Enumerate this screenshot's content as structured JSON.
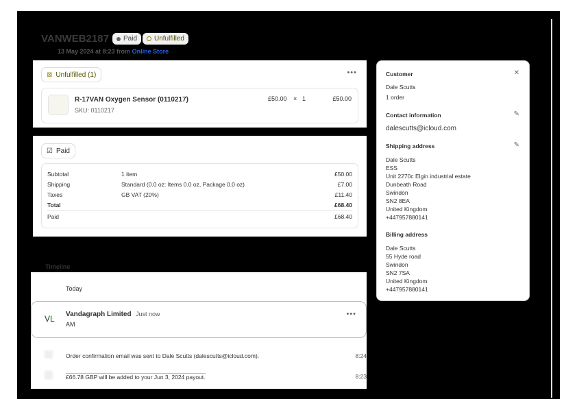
{
  "header": {
    "order_id": "VANWEB2187",
    "badge_paid": "Paid",
    "badge_unfulfilled": "Unfulfilled",
    "date": "13 May 2024 at 8:23 from",
    "channel": "Online Store"
  },
  "fulfillment": {
    "status": "Unfulfilled (1)",
    "item": {
      "name": "R-17VAN Oxygen Sensor (0110217)",
      "sku": "SKU: 0110217",
      "price": "£50.00",
      "times": "×",
      "qty": "1",
      "total": "£50.00"
    }
  },
  "payment": {
    "status": "Paid",
    "rows": [
      {
        "label": "Subtotal",
        "desc": "1 item",
        "amount": "£50.00"
      },
      {
        "label": "Shipping",
        "desc": "Standard (0.0 oz: Items 0.0 oz, Package 0.0 oz)",
        "amount": "£7.00"
      },
      {
        "label": "Taxes",
        "desc": "GB VAT (20%)",
        "amount": "£11.40"
      },
      {
        "label": "Total",
        "desc": "",
        "amount": "£68.40"
      },
      {
        "label": "Paid",
        "desc": "",
        "amount": "£68.40"
      }
    ]
  },
  "timeline": {
    "title": "Timeline",
    "today": "Today",
    "comment": {
      "initials": "VL",
      "author": "Vandagraph Limited",
      "time": "Just now",
      "text": "AM"
    },
    "events": [
      {
        "text": "Order confirmation email was sent to Dale Scutts (dalescutts@icloud.com).",
        "time": "8:24"
      },
      {
        "text": "£66.78 GBP will be added to your Jun 3, 2024 payout.",
        "time": "8:23"
      }
    ]
  },
  "customer": {
    "title": "Customer",
    "name": "Dale Scutts",
    "orders": "1 order",
    "contact_title": "Contact information",
    "email": "dalescutts@icloud.com",
    "shipping_title": "Shipping address",
    "shipping": [
      "Dale Scutts",
      "ESS",
      "Unit 2270c Elgin industrial estate",
      "Dunbeath Road",
      "Swindon",
      "SN2 8EA",
      "United Kingdom",
      "+447957880141"
    ],
    "billing_title": "Billing address",
    "billing": [
      "Dale Scutts",
      "55 Hyde road",
      "Swindon",
      "SN2 7SA",
      "United Kingdom",
      "+447957880141"
    ]
  }
}
